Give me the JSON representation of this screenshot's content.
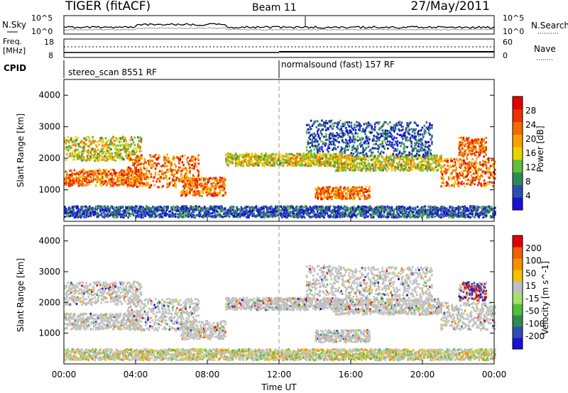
{
  "header": {
    "radar": "TIGER (fitACF)",
    "beam": "Beam 11",
    "date": "27/May/2011"
  },
  "strip_panels": {
    "noise": {
      "left_label": "N.Sky",
      "right_label": "N.Search",
      "left_ticks": [
        "10^5",
        "10^0"
      ],
      "right_ticks": [
        "10^5",
        "10^0"
      ]
    },
    "freq": {
      "left_label_1": "Freq.",
      "left_label_2": "[MHz]",
      "right_label": "Nave",
      "left_ticks": [
        "18",
        "8"
      ],
      "right_ticks": [
        "60",
        "0"
      ]
    },
    "cpid": {
      "label": "CPID",
      "segments": [
        {
          "label": "stereo_scan 8551 RF",
          "start_hour": 0,
          "end_hour": 12
        },
        {
          "label": "normalsound (fast) 157 RF",
          "start_hour": 12,
          "end_hour": 24
        }
      ]
    }
  },
  "x_axis": {
    "label": "Time UT",
    "range_hours": [
      0,
      24
    ],
    "tick_labels": [
      "00:00",
      "04:00",
      "08:00",
      "12:00",
      "16:00",
      "20:00",
      "00:00"
    ]
  },
  "chart_data": [
    {
      "type": "heatmap",
      "ylabel": "Slant Range [km]",
      "ylim": [
        0,
        4500
      ],
      "y_ticks": [
        1000,
        2000,
        3000,
        4000
      ],
      "colorbar": {
        "label": "Power [dB]",
        "tick_labels": [
          "4",
          "8",
          "12",
          "16",
          "20",
          "24",
          "28"
        ],
        "colors": [
          "#1a10d8",
          "#2a4fb0",
          "#2e8a54",
          "#5fbf3a",
          "#e8d400",
          "#f5a200",
          "#f26a00",
          "#ee3000",
          "#e00000"
        ]
      },
      "layers": [
        {
          "start_hour": 0.0,
          "end_hour": 4.3,
          "center_km": 1380,
          "half_width_km": 260,
          "level": "high"
        },
        {
          "start_hour": 0.0,
          "end_hour": 4.3,
          "center_km": 2300,
          "half_width_km": 380,
          "level": "medium"
        },
        {
          "start_hour": 3.5,
          "end_hour": 7.5,
          "center_km": 1600,
          "half_width_km": 520,
          "level": "high"
        },
        {
          "start_hour": 6.5,
          "end_hour": 9.0,
          "center_km": 1100,
          "half_width_km": 300,
          "level": "high"
        },
        {
          "start_hour": 9.0,
          "end_hour": 15.5,
          "center_km": 1950,
          "half_width_km": 200,
          "level": "medium"
        },
        {
          "start_hour": 13.5,
          "end_hour": 15.5,
          "center_km": 2700,
          "half_width_km": 500,
          "level": "low"
        },
        {
          "start_hour": 14.0,
          "end_hour": 17.0,
          "center_km": 900,
          "half_width_km": 200,
          "level": "high"
        },
        {
          "start_hour": 15.0,
          "end_hour": 21.0,
          "center_km": 1850,
          "half_width_km": 250,
          "level": "medium"
        },
        {
          "start_hour": 15.5,
          "end_hour": 20.5,
          "center_km": 2600,
          "half_width_km": 550,
          "level": "low"
        },
        {
          "start_hour": 21.0,
          "end_hour": 24.0,
          "center_km": 1550,
          "half_width_km": 450,
          "level": "high"
        },
        {
          "start_hour": 22.0,
          "end_hour": 23.5,
          "center_km": 2350,
          "half_width_km": 300,
          "level": "high"
        },
        {
          "start_hour": 0.0,
          "end_hour": 24.0,
          "center_km": 300,
          "half_width_km": 180,
          "level": "low"
        }
      ]
    },
    {
      "type": "heatmap",
      "ylabel": "Slant Range [km]",
      "ylim": [
        0,
        4500
      ],
      "y_ticks": [
        1000,
        2000,
        3000,
        4000
      ],
      "colorbar": {
        "label": "Velocity [m s^-1]",
        "tick_labels": [
          "200",
          "100",
          "50",
          "15",
          "-15",
          "-50",
          "-100",
          "-200"
        ],
        "colors": [
          "#1a10d8",
          "#2a4fb0",
          "#2e8a54",
          "#4fbf3a",
          "#a8e070",
          "#c0c0c0",
          "#f5c000",
          "#f59000",
          "#f06000",
          "#e00000"
        ]
      },
      "layers": [
        {
          "start_hour": 0.0,
          "end_hour": 4.3,
          "center_km": 1380,
          "half_width_km": 260,
          "level": "ground"
        },
        {
          "start_hour": 0.0,
          "end_hour": 4.3,
          "center_km": 2300,
          "half_width_km": 380,
          "level": "ground"
        },
        {
          "start_hour": 3.5,
          "end_hour": 7.5,
          "center_km": 1600,
          "half_width_km": 520,
          "level": "ground"
        },
        {
          "start_hour": 6.5,
          "end_hour": 9.0,
          "center_km": 1100,
          "half_width_km": 300,
          "level": "ground"
        },
        {
          "start_hour": 9.0,
          "end_hour": 15.5,
          "center_km": 1950,
          "half_width_km": 200,
          "level": "ground"
        },
        {
          "start_hour": 13.5,
          "end_hour": 15.5,
          "center_km": 2700,
          "half_width_km": 500,
          "level": "ground"
        },
        {
          "start_hour": 14.0,
          "end_hour": 17.0,
          "center_km": 900,
          "half_width_km": 200,
          "level": "ground"
        },
        {
          "start_hour": 15.0,
          "end_hour": 21.0,
          "center_km": 1850,
          "half_width_km": 250,
          "level": "ground"
        },
        {
          "start_hour": 15.5,
          "end_hour": 20.5,
          "center_km": 2600,
          "half_width_km": 550,
          "level": "ground"
        },
        {
          "start_hour": 21.0,
          "end_hour": 24.0,
          "center_km": 1550,
          "half_width_km": 450,
          "level": "ground"
        },
        {
          "start_hour": 22.0,
          "end_hour": 23.5,
          "center_km": 2350,
          "half_width_km": 300,
          "level": "mixed"
        },
        {
          "start_hour": 0.0,
          "end_hour": 24.0,
          "center_km": 300,
          "half_width_km": 180,
          "level": "low"
        }
      ]
    }
  ]
}
